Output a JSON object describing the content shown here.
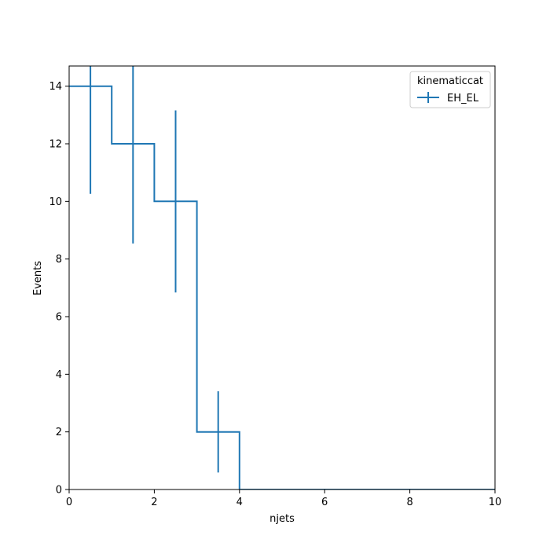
{
  "chart_data": {
    "type": "line",
    "style": "step-histogram-with-errorbars",
    "xlabel": "njets",
    "ylabel": "Events",
    "xlim": [
      0,
      10
    ],
    "ylim": [
      0,
      14.7
    ],
    "xticks": [
      0,
      2,
      4,
      6,
      8,
      10
    ],
    "yticks": [
      0,
      2,
      4,
      6,
      8,
      10,
      12,
      14
    ],
    "grid": false,
    "legend": {
      "title": "kinematiccat",
      "placement": "top-right"
    },
    "bin_edges": [
      0,
      1,
      2,
      3,
      4,
      5,
      6,
      7,
      8,
      9,
      10
    ],
    "series": [
      {
        "name": "EH_EL",
        "color": "#1f77b4",
        "values": [
          14,
          12,
          10,
          2,
          0,
          0,
          0,
          0,
          0,
          0
        ],
        "errors": [
          3.74,
          3.46,
          3.16,
          1.41,
          0,
          0,
          0,
          0,
          0,
          0
        ]
      }
    ]
  }
}
